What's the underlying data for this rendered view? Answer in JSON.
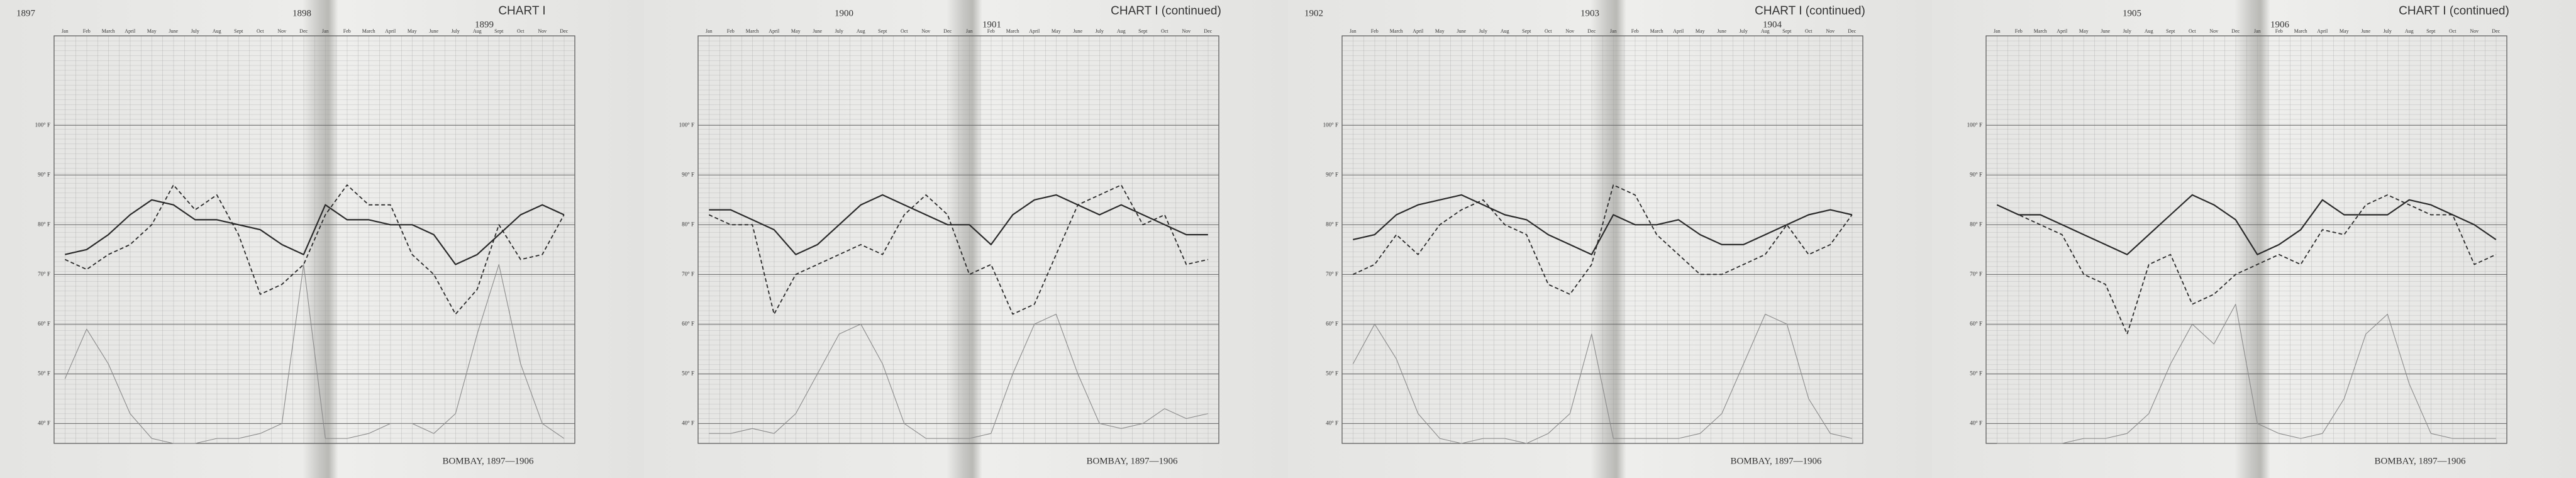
{
  "chart_data": [
    {
      "type": "line",
      "title": "CHART I",
      "years": [
        "1897",
        "1898",
        "1899"
      ],
      "footer": "BOMBAY, 1897—1906",
      "categories": [
        "Jan",
        "Feb",
        "March",
        "April",
        "May",
        "June",
        "July",
        "Aug",
        "Sept",
        "Oct",
        "Nov",
        "Dec",
        "Jan",
        "Feb",
        "March",
        "April",
        "May",
        "June",
        "July",
        "Aug",
        "Sept",
        "Oct",
        "Nov",
        "Dec"
      ],
      "ylim": [
        36,
        118
      ],
      "yticks": [
        {
          "value": 40,
          "label": "40° F"
        },
        {
          "value": 50,
          "label": "50° F"
        },
        {
          "value": 60,
          "label": "60° F"
        },
        {
          "value": 70,
          "label": "70° F"
        },
        {
          "value": 80,
          "label": "80° F"
        },
        {
          "value": 90,
          "label": "90° F"
        },
        {
          "value": 100,
          "label": "100° F"
        }
      ],
      "grid": true,
      "series": [
        {
          "color": "#2a2a2a",
          "line_style": "solid",
          "values": [
            74,
            75,
            78,
            82,
            85,
            84,
            81,
            81,
            80,
            79,
            76,
            74,
            84,
            81,
            81,
            80,
            80,
            78,
            72,
            74,
            78,
            82,
            84,
            82
          ]
        },
        {
          "color": "#2a2a2a",
          "line_style": "dashed",
          "values": [
            73,
            71,
            74,
            76,
            80,
            88,
            83,
            86,
            78,
            66,
            68,
            72,
            82,
            88,
            84,
            84,
            74,
            70,
            62,
            67,
            80,
            73,
            74,
            82
          ]
        },
        {
          "color": "#8a8a8a",
          "line_style": "thin",
          "values": [
            49,
            59,
            52,
            42,
            37,
            36,
            36,
            37,
            37,
            38,
            40,
            72,
            37,
            37,
            38,
            40,
            40,
            38,
            42,
            58,
            72,
            52,
            40,
            37
          ]
        }
      ]
    },
    {
      "type": "line",
      "title": "CHART I (continued)",
      "years": [
        "1900",
        "1901"
      ],
      "footer": "BOMBAY, 1897—1906",
      "categories": [
        "Jan",
        "Feb",
        "March",
        "April",
        "May",
        "June",
        "July",
        "Aug",
        "Sept",
        "Oct",
        "Nov",
        "Dec",
        "Jan",
        "Feb",
        "March",
        "April",
        "May",
        "June",
        "July",
        "Aug",
        "Sept",
        "Oct",
        "Nov",
        "Dec"
      ],
      "ylim": [
        36,
        118
      ],
      "yticks": [
        {
          "value": 40,
          "label": "40° F"
        },
        {
          "value": 50,
          "label": "50° F"
        },
        {
          "value": 60,
          "label": "60° F"
        },
        {
          "value": 70,
          "label": "70° F"
        },
        {
          "value": 80,
          "label": "80° F"
        },
        {
          "value": 90,
          "label": "90° F"
        },
        {
          "value": 100,
          "label": "100° F"
        }
      ],
      "grid": true,
      "series": [
        {
          "color": "#2a2a2a",
          "line_style": "solid",
          "values": [
            83,
            83,
            81,
            79,
            74,
            76,
            80,
            84,
            86,
            84,
            82,
            80,
            80,
            76,
            82,
            85,
            86,
            84,
            82,
            84,
            82,
            80,
            78,
            78
          ]
        },
        {
          "color": "#2a2a2a",
          "line_style": "dashed",
          "values": [
            82,
            80,
            80,
            62,
            70,
            72,
            74,
            76,
            74,
            82,
            86,
            82,
            70,
            72,
            62,
            64,
            74,
            84,
            86,
            88,
            80,
            82,
            72,
            73
          ]
        },
        {
          "color": "#8a8a8a",
          "line_style": "thin",
          "values": [
            38,
            38,
            39,
            38,
            42,
            50,
            58,
            60,
            52,
            40,
            37,
            37,
            37,
            38,
            50,
            60,
            62,
            50,
            40,
            39,
            40,
            43,
            41,
            42
          ]
        }
      ]
    },
    {
      "type": "line",
      "title": "CHART I (continued)",
      "years": [
        "1902",
        "1903",
        "1904"
      ],
      "footer": "BOMBAY, 1897—1906",
      "categories": [
        "Jan",
        "Feb",
        "March",
        "April",
        "May",
        "June",
        "July",
        "Aug",
        "Sept",
        "Oct",
        "Nov",
        "Dec",
        "Jan",
        "Feb",
        "March",
        "April",
        "May",
        "June",
        "July",
        "Aug",
        "Sept",
        "Oct",
        "Nov",
        "Dec"
      ],
      "ylim": [
        36,
        118
      ],
      "yticks": [
        {
          "value": 40,
          "label": "40° F"
        },
        {
          "value": 50,
          "label": "50° F"
        },
        {
          "value": 60,
          "label": "60° F"
        },
        {
          "value": 70,
          "label": "70° F"
        },
        {
          "value": 80,
          "label": "80° F"
        },
        {
          "value": 90,
          "label": "90° F"
        },
        {
          "value": 100,
          "label": "100° F"
        }
      ],
      "grid": true,
      "series": [
        {
          "color": "#2a2a2a",
          "line_style": "solid",
          "values": [
            77,
            78,
            82,
            84,
            85,
            86,
            84,
            82,
            81,
            78,
            76,
            74,
            82,
            80,
            80,
            81,
            78,
            76,
            76,
            78,
            80,
            82,
            83,
            82
          ]
        },
        {
          "color": "#2a2a2a",
          "line_style": "dashed",
          "values": [
            70,
            72,
            78,
            74,
            80,
            83,
            85,
            80,
            78,
            68,
            66,
            72,
            88,
            86,
            78,
            74,
            70,
            70,
            72,
            74,
            80,
            74,
            76,
            82
          ]
        },
        {
          "color": "#8a8a8a",
          "line_style": "thin",
          "values": [
            52,
            60,
            53,
            42,
            37,
            36,
            37,
            37,
            36,
            38,
            42,
            58,
            37,
            37,
            37,
            37,
            38,
            42,
            52,
            62,
            60,
            45,
            38,
            37
          ]
        }
      ]
    },
    {
      "type": "line",
      "title": "CHART I (continued)",
      "years": [
        "1905",
        "1906"
      ],
      "footer": "BOMBAY, 1897—1906",
      "categories": [
        "Jan",
        "Feb",
        "March",
        "April",
        "May",
        "June",
        "July",
        "Aug",
        "Sept",
        "Oct",
        "Nov",
        "Dec",
        "Jan",
        "Feb",
        "March",
        "April",
        "May",
        "June",
        "July",
        "Aug",
        "Sept",
        "Oct",
        "Nov",
        "Dec"
      ],
      "ylim": [
        36,
        118
      ],
      "yticks": [
        {
          "value": 40,
          "label": "40° F"
        },
        {
          "value": 50,
          "label": "50° F"
        },
        {
          "value": 60,
          "label": "60° F"
        },
        {
          "value": 70,
          "label": "70° F"
        },
        {
          "value": 80,
          "label": "80° F"
        },
        {
          "value": 90,
          "label": "90° F"
        },
        {
          "value": 100,
          "label": "100° F"
        }
      ],
      "grid": true,
      "series": [
        {
          "color": "#2a2a2a",
          "line_style": "solid",
          "values": [
            84,
            82,
            82,
            80,
            78,
            76,
            74,
            78,
            82,
            86,
            84,
            81,
            74,
            76,
            79,
            85,
            82,
            82,
            82,
            85,
            84,
            82,
            80,
            77
          ]
        },
        {
          "color": "#2a2a2a",
          "line_style": "dashed",
          "values": [
            84,
            82,
            80,
            78,
            70,
            68,
            58,
            72,
            74,
            64,
            66,
            70,
            72,
            74,
            72,
            79,
            78,
            84,
            86,
            84,
            82,
            82,
            72,
            74
          ]
        },
        {
          "color": "#8a8a8a",
          "line_style": "thin",
          "values": [
            36,
            36,
            36,
            36,
            37,
            37,
            38,
            42,
            52,
            60,
            56,
            64,
            40,
            38,
            37,
            38,
            45,
            58,
            62,
            48,
            38,
            37,
            37,
            37
          ]
        }
      ]
    }
  ]
}
